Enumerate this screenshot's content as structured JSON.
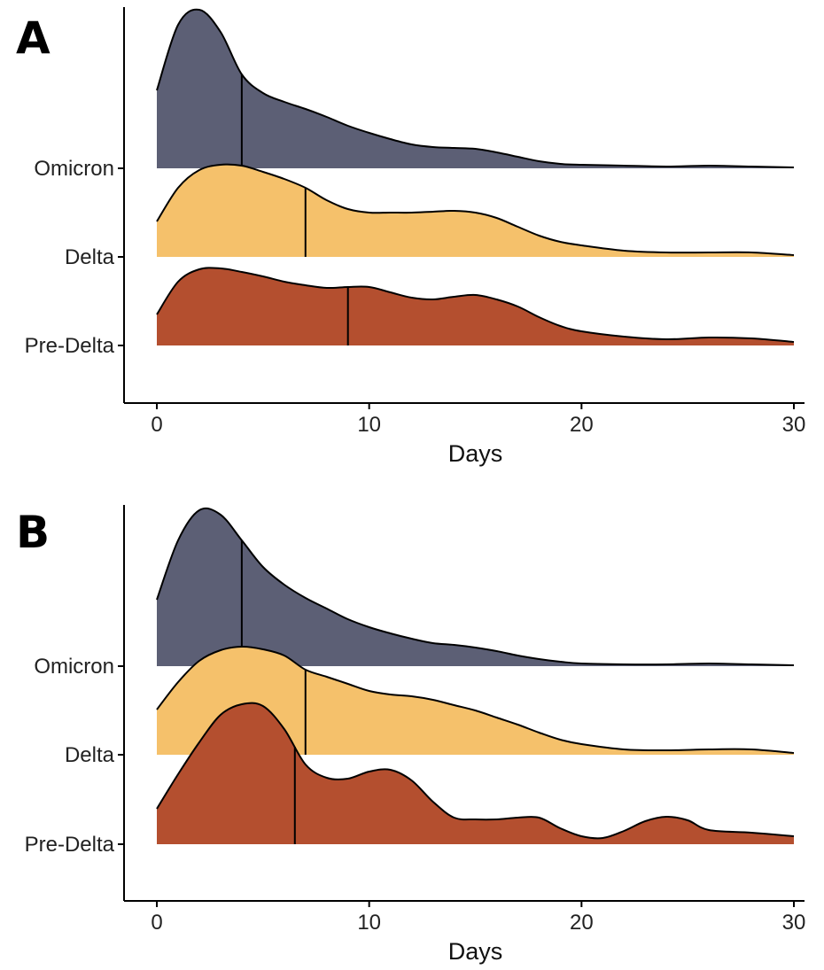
{
  "chart_data": [
    {
      "panel_label": "A",
      "type": "ridgeline",
      "xlabel": "Days",
      "ylabel": "",
      "xlim": [
        0,
        30
      ],
      "xticks": [
        "0",
        "10",
        "20",
        "30"
      ],
      "categories": [
        "Pre-Delta",
        "Delta",
        "Omicron"
      ],
      "series": [
        {
          "name": "Pre-Delta",
          "color": "#B44F2F",
          "median": 9,
          "x": [
            0,
            1,
            2,
            3,
            4,
            5,
            6,
            7,
            8,
            9,
            10,
            11,
            12,
            13,
            14,
            15,
            16,
            17,
            18,
            19,
            20,
            22,
            24,
            26,
            28,
            30
          ],
          "y": [
            0.35,
            0.72,
            0.86,
            0.87,
            0.83,
            0.78,
            0.72,
            0.68,
            0.65,
            0.66,
            0.66,
            0.6,
            0.54,
            0.52,
            0.55,
            0.57,
            0.52,
            0.44,
            0.32,
            0.22,
            0.16,
            0.1,
            0.07,
            0.09,
            0.08,
            0.04
          ]
        },
        {
          "name": "Delta",
          "color": "#F5C16B",
          "median": 7,
          "x": [
            0,
            1,
            2,
            3,
            4,
            5,
            6,
            7,
            8,
            9,
            10,
            11,
            12,
            13,
            14,
            15,
            16,
            17,
            18,
            19,
            20,
            22,
            24,
            26,
            28,
            30
          ],
          "y": [
            0.4,
            0.78,
            0.98,
            1.04,
            1.03,
            0.96,
            0.88,
            0.78,
            0.64,
            0.54,
            0.5,
            0.5,
            0.5,
            0.51,
            0.52,
            0.5,
            0.44,
            0.34,
            0.24,
            0.17,
            0.13,
            0.07,
            0.05,
            0.05,
            0.05,
            0.02
          ]
        },
        {
          "name": "Omicron",
          "color": "#5C5F75",
          "median": 4,
          "x": [
            0,
            1,
            2,
            3,
            4,
            5,
            6,
            7,
            8,
            9,
            10,
            11,
            12,
            13,
            14,
            15,
            16,
            17,
            18,
            19,
            20,
            22,
            24,
            26,
            28,
            30
          ],
          "y": [
            0.88,
            1.62,
            1.79,
            1.54,
            1.06,
            0.85,
            0.75,
            0.67,
            0.58,
            0.48,
            0.4,
            0.33,
            0.27,
            0.24,
            0.23,
            0.22,
            0.18,
            0.13,
            0.08,
            0.05,
            0.04,
            0.03,
            0.02,
            0.03,
            0.02,
            0.01
          ]
        }
      ]
    },
    {
      "panel_label": "B",
      "type": "ridgeline",
      "xlabel": "Days",
      "ylabel": "",
      "xlim": [
        0,
        30
      ],
      "xticks": [
        "0",
        "10",
        "20",
        "30"
      ],
      "categories": [
        "Pre-Delta",
        "Delta",
        "Omicron"
      ],
      "series": [
        {
          "name": "Pre-Delta",
          "color": "#B44F2F",
          "median": 6.5,
          "x": [
            0,
            1,
            2,
            3,
            4,
            5,
            6,
            7,
            8,
            9,
            10,
            11,
            12,
            13,
            14,
            15,
            16,
            17,
            18,
            19,
            20,
            21,
            22,
            23,
            24,
            25,
            26,
            28,
            30
          ],
          "y": [
            0.4,
            0.79,
            1.15,
            1.46,
            1.58,
            1.56,
            1.3,
            0.9,
            0.75,
            0.74,
            0.82,
            0.84,
            0.72,
            0.48,
            0.3,
            0.28,
            0.28,
            0.3,
            0.3,
            0.18,
            0.09,
            0.07,
            0.15,
            0.26,
            0.31,
            0.27,
            0.16,
            0.13,
            0.09
          ]
        },
        {
          "name": "Delta",
          "color": "#F5C16B",
          "median": 7,
          "x": [
            0,
            1,
            2,
            3,
            4,
            5,
            6,
            7,
            8,
            9,
            10,
            11,
            12,
            13,
            14,
            15,
            16,
            17,
            18,
            19,
            20,
            22,
            24,
            26,
            28,
            30
          ],
          "y": [
            0.51,
            0.82,
            1.06,
            1.18,
            1.22,
            1.19,
            1.12,
            0.96,
            0.88,
            0.8,
            0.72,
            0.68,
            0.66,
            0.62,
            0.56,
            0.5,
            0.42,
            0.34,
            0.25,
            0.17,
            0.12,
            0.06,
            0.05,
            0.06,
            0.06,
            0.02
          ]
        },
        {
          "name": "Omicron",
          "color": "#5C5F75",
          "median": 4,
          "x": [
            0,
            1,
            2,
            3,
            4,
            5,
            6,
            7,
            8,
            9,
            10,
            11,
            12,
            13,
            14,
            15,
            16,
            17,
            18,
            19,
            20,
            22,
            24,
            26,
            28,
            30
          ],
          "y": [
            0.75,
            1.42,
            1.76,
            1.71,
            1.42,
            1.12,
            0.92,
            0.77,
            0.65,
            0.53,
            0.44,
            0.37,
            0.31,
            0.26,
            0.24,
            0.21,
            0.17,
            0.12,
            0.08,
            0.05,
            0.03,
            0.02,
            0.02,
            0.03,
            0.02,
            0.01
          ]
        }
      ]
    }
  ]
}
